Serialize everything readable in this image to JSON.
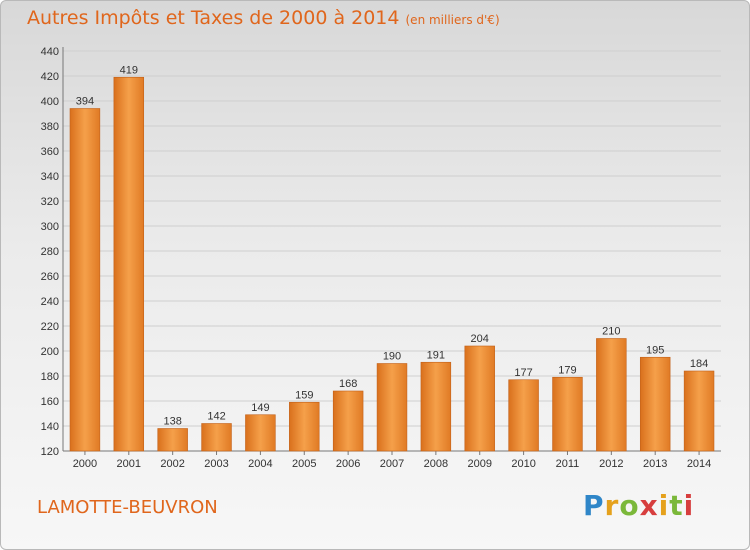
{
  "chart_data": {
    "type": "bar",
    "title": "Autres Impôts et Taxes de 2000 à 2014",
    "unit_note": "(en milliers d'€)",
    "categories": [
      "2000",
      "2001",
      "2002",
      "2003",
      "2004",
      "2005",
      "2006",
      "2007",
      "2008",
      "2009",
      "2010",
      "2011",
      "2012",
      "2013",
      "2014"
    ],
    "values": [
      394,
      419,
      138,
      142,
      149,
      159,
      168,
      190,
      191,
      204,
      177,
      179,
      210,
      195,
      184
    ],
    "ylim": [
      120,
      440
    ],
    "yticks": [
      120,
      140,
      160,
      180,
      200,
      220,
      240,
      260,
      280,
      300,
      320,
      340,
      360,
      380,
      400,
      420,
      440
    ],
    "grid": true,
    "bar_color": "#f08a2a"
  },
  "place": "LAMOTTE-BEUVRON",
  "logo": "Proxiti"
}
